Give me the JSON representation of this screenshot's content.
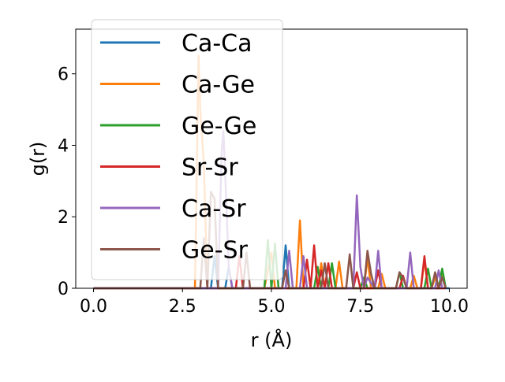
{
  "chart_data": {
    "type": "line",
    "xlabel": "r (Å)",
    "ylabel": "g(r)",
    "xlim": [
      -0.5,
      10.5
    ],
    "ylim": [
      0,
      7.25
    ],
    "xticks": [
      0.0,
      2.5,
      5.0,
      7.5,
      10.0
    ],
    "xtick_labels": [
      "0.0",
      "2.5",
      "5.0",
      "7.5",
      "10.0"
    ],
    "yticks": [
      0,
      2,
      4,
      6
    ],
    "ytick_labels": [
      "0",
      "2",
      "4",
      "6"
    ],
    "legend_position": "upper-left",
    "grid": false,
    "series": [
      {
        "name": "Ca-Ca",
        "color": "#1f77b4",
        "x": [
          0,
          2.9,
          3.3,
          3.4,
          3.5,
          3.7,
          3.8,
          3.9,
          5.3,
          5.4,
          5.5,
          10.0
        ],
        "y": [
          0,
          0,
          0,
          0.9,
          0,
          0,
          0.6,
          0,
          0,
          1.2,
          0,
          0
        ]
      },
      {
        "name": "Ca-Ge",
        "color": "#ff7f0e",
        "x": [
          0,
          2.85,
          2.95,
          3.0,
          3.1,
          3.2,
          4.8,
          5.0,
          5.1,
          5.7,
          5.8,
          5.9,
          6.3,
          6.4,
          6.5,
          6.8,
          6.9,
          7.0,
          7.1,
          7.6,
          7.7,
          7.8,
          8.0,
          8.1,
          8.2,
          8.9,
          9.0,
          9.1,
          9.2,
          9.3,
          9.4,
          9.5,
          9.6,
          9.7,
          9.8,
          9.9
        ],
        "y": [
          0,
          0,
          6.5,
          5.0,
          3.5,
          0,
          0,
          1.0,
          0,
          0,
          1.9,
          0,
          0,
          0.7,
          0,
          0,
          0.75,
          0,
          0,
          0,
          0.85,
          0,
          0,
          0.4,
          0,
          0,
          0.35,
          0,
          0,
          0.8,
          0,
          0,
          0.3,
          0,
          0.45,
          0
        ]
      },
      {
        "name": "Ge-Ge",
        "color": "#2ca02c",
        "x": [
          0,
          4.8,
          4.9,
          5.0,
          5.1,
          5.2,
          5.25,
          5.3,
          6.2,
          6.3,
          6.4,
          6.6,
          6.7,
          6.8,
          7.5,
          7.6,
          7.7,
          8.5,
          8.6,
          8.7,
          9.3,
          9.4,
          9.5,
          9.7,
          9.8,
          9.9
        ],
        "y": [
          0,
          0,
          1.35,
          0,
          1.25,
          0,
          0,
          0,
          0,
          0.6,
          0,
          0,
          0.7,
          0,
          0,
          0.3,
          0,
          0,
          0.45,
          0,
          0,
          0.55,
          0,
          0,
          0.55,
          0
        ]
      },
      {
        "name": "Sr-Sr",
        "color": "#d62728",
        "x": [
          0,
          4.0,
          4.1,
          4.2,
          4.3,
          5.9,
          6.0,
          6.1,
          6.2,
          6.3,
          6.4,
          6.5,
          6.6,
          6.7,
          6.8,
          7.3,
          7.4,
          7.5,
          7.9,
          8.0,
          8.1,
          8.6,
          8.7,
          8.8,
          9.2,
          9.3,
          9.4,
          9.9
        ],
        "y": [
          0,
          0,
          0.9,
          0,
          0,
          0,
          0.8,
          0,
          1.2,
          0,
          0.5,
          0,
          0.7,
          0,
          0,
          0,
          0.45,
          0,
          0,
          0.5,
          0,
          0,
          0.35,
          0,
          0,
          0.9,
          0,
          0
        ]
      },
      {
        "name": "Ca-Sr",
        "color": "#9467bd",
        "x": [
          0,
          3.5,
          3.6,
          3.65,
          3.7,
          3.8,
          3.9,
          5.4,
          5.5,
          5.6,
          5.8,
          5.9,
          6.0,
          7.3,
          7.4,
          7.5,
          7.6,
          7.7,
          7.9,
          8.0,
          8.1,
          8.8,
          8.9,
          9.0,
          9.6,
          9.7,
          9.8
        ],
        "y": [
          0,
          0,
          3.8,
          4.4,
          3.2,
          0.6,
          0,
          0,
          1.05,
          0,
          0,
          0.9,
          0,
          0,
          2.6,
          0.6,
          0,
          0.3,
          0,
          1.05,
          0,
          0,
          1.0,
          0,
          0,
          0.5,
          0
        ]
      },
      {
        "name": "Ge-Sr",
        "color": "#8c564b",
        "x": [
          0,
          3.0,
          3.1,
          3.2,
          3.3,
          3.4,
          3.5,
          3.6,
          4.2,
          4.3,
          4.4,
          5.3,
          5.4,
          5.5,
          5.6,
          6.4,
          6.5,
          6.6,
          7.1,
          7.2,
          7.3,
          7.6,
          7.7,
          7.8,
          7.9,
          8.5,
          8.6,
          8.7,
          8.8,
          9.5,
          9.6,
          9.7,
          9.8,
          9.9
        ],
        "y": [
          0,
          0,
          1.4,
          0,
          2.7,
          2.5,
          0,
          0,
          0,
          1.0,
          0,
          0,
          0.5,
          0,
          0,
          0,
          0.7,
          0,
          0,
          0.95,
          0,
          0,
          1.05,
          0.4,
          0,
          0,
          0.45,
          0.3,
          0,
          0,
          0.45,
          0,
          0.3,
          0
        ]
      }
    ]
  }
}
